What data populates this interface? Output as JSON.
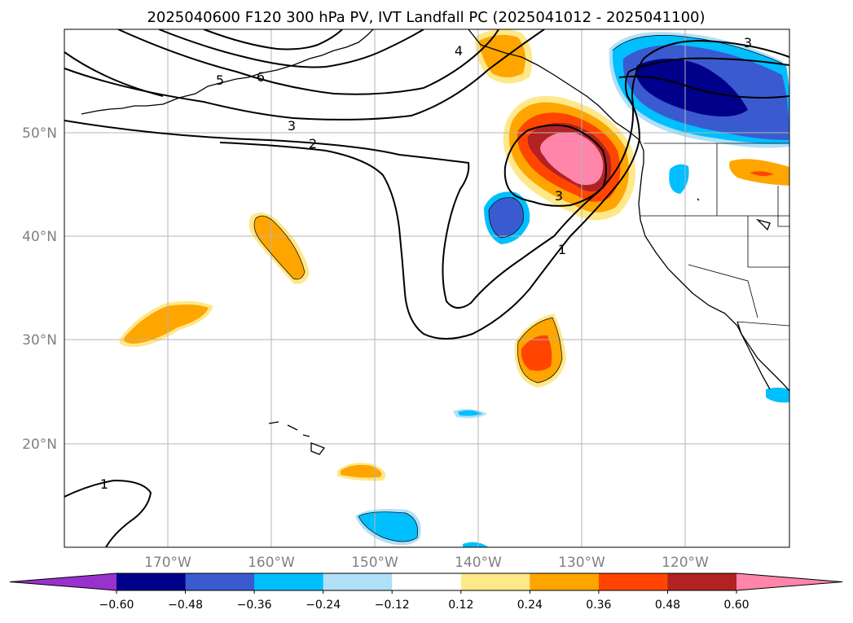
{
  "title": "2025040600 F120 300 hPa PV, IVT Landfall PC (2025041012 - 2025041100)",
  "lat_labels": [
    "50°N",
    "40°N",
    "30°N",
    "20°N"
  ],
  "lon_labels": [
    "170°W",
    "160°W",
    "150°W",
    "140°W",
    "130°W",
    "120°W"
  ],
  "contour_labels": [
    "4",
    "5",
    "6",
    "3",
    "2",
    "3",
    "1",
    "3",
    "1"
  ],
  "colorbar": {
    "ticks": [
      "−0.60",
      "−0.48",
      "−0.36",
      "−0.24",
      "−0.12",
      "0.12",
      "0.24",
      "0.36",
      "0.48",
      "0.60"
    ],
    "colors": [
      "#9932cc",
      "#00008b",
      "#3a5bcf",
      "#00bfff",
      "#b0e0f8",
      "#ffffff",
      "#ffe88a",
      "#ffa500",
      "#ff4500",
      "#b22222",
      "#ff85aa"
    ]
  }
}
